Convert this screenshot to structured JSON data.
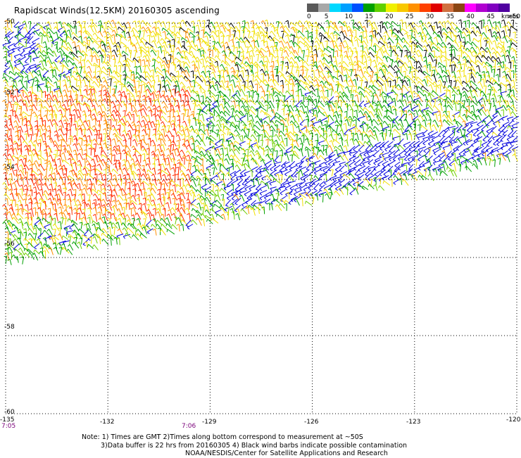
{
  "title": "Rapidscat Winds(12.5KM) 20160305 ascending",
  "legend": {
    "colors": [
      "#5a5a5a",
      "#a8a8a8",
      "#00d8ff",
      "#00a0ff",
      "#0050ff",
      "#00a000",
      "#60d000",
      "#f0f000",
      "#f8c800",
      "#ff9000",
      "#ff4000",
      "#e00000",
      "#d07040",
      "#8b4513",
      "#ff00ff",
      "#b000d0",
      "#8000c0",
      "#5000a0"
    ],
    "labels": [
      "0",
      "5",
      "10",
      "15",
      "20",
      "25",
      "30",
      "35",
      "40",
      "45",
      ">50"
    ],
    "unit": "knots"
  },
  "map": {
    "lat_labels": [
      "-50",
      "-52",
      "-54",
      "-56",
      "-58",
      "-60"
    ],
    "lon_labels": [
      "-135",
      "-132",
      "-129",
      "-126",
      "-123",
      "-120"
    ],
    "time_labels": [
      "7:05",
      "7:06"
    ],
    "lat_range": [
      -60,
      -50
    ],
    "lon_range": [
      -135,
      -120
    ],
    "grid": true
  },
  "notes": {
    "line1": "Note: 1) Times are GMT 2)Times along bottom correspond to measurement at ~50S",
    "line2": "3)Data buffer is 22 hrs from 20160305 4) Black wind barbs indicate possible contamination",
    "line3": "NOAA/NESDIS/Center for Satellite Applications and Research"
  },
  "colors": {
    "wind_blue": "#0000dd",
    "wind_green": "#00a000",
    "wind_lightgreen": "#70d000",
    "wind_yellow": "#f0e000",
    "wind_orange": "#ff9000",
    "wind_red": "#ff2a00",
    "wind_black": "#000000"
  }
}
